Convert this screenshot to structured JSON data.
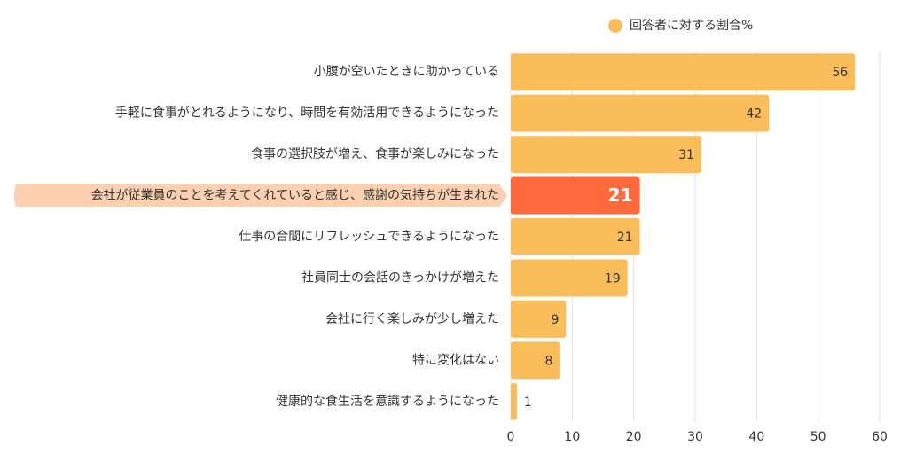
{
  "chart_data": {
    "type": "hbar",
    "categories": [
      "小腹が空いたときに助かっている",
      "手軽に食事がとれるようになり、時間を有効活用できるようになった",
      "食事の選択肢が増え、食事が楽しみになった",
      "会社が従業員のことを考えてくれていると感じ、感謝の気持ちが生まれた",
      "仕事の合間にリフレッシュできるようになった",
      "社員同士の会話のきっかけが増えた",
      "会社に行く楽しみが少し増えた",
      "特に変化はない",
      "健康的な食生活を意識するようになった"
    ],
    "series": [
      {
        "name": "回答者に対する割合%",
        "color": "#f9bd5b",
        "values": [
          56,
          42,
          31,
          21,
          21,
          19,
          9,
          8,
          1
        ]
      }
    ],
    "highlight_index": 3,
    "highlight_color": "#fe6a3c",
    "highlight_label_background": "#fcd0b0",
    "xlim": [
      0,
      60
    ],
    "xticks": [
      0,
      10,
      20,
      30,
      40,
      50,
      60
    ],
    "grid": true,
    "legend": "top"
  }
}
